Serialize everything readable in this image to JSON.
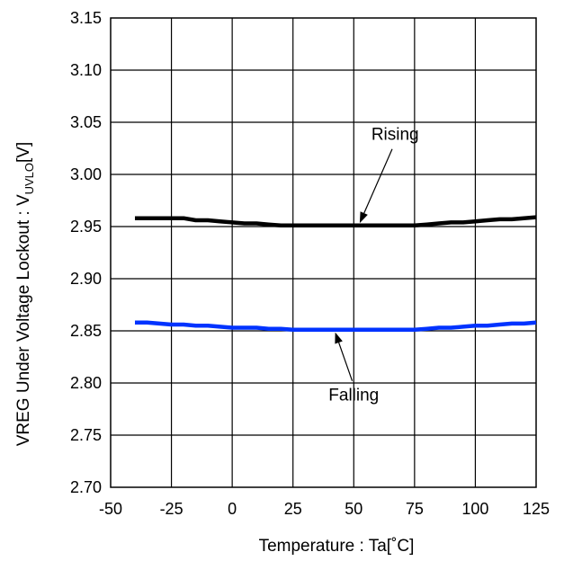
{
  "chart_data": {
    "type": "line",
    "title": "",
    "xlabel": "Temperature : Ta[˚C]",
    "ylabel": {
      "before": "VREG Under Voltage Lockout : V",
      "sub": "UVLO",
      "after": "[V]"
    },
    "xlim": [
      -50,
      125
    ],
    "ylim": [
      2.7,
      3.15
    ],
    "x_ticks": [
      "-50",
      "-25",
      "0",
      "25",
      "50",
      "75",
      "100",
      "125"
    ],
    "y_ticks": [
      "2.70",
      "2.75",
      "2.80",
      "2.85",
      "2.90",
      "2.95",
      "3.00",
      "3.05",
      "3.10",
      "3.15"
    ],
    "grid": true,
    "series": [
      {
        "name": "Rising",
        "color": "#000000",
        "x": [
          -40,
          -35,
          -30,
          -25,
          -20,
          -15,
          -10,
          -5,
          0,
          5,
          10,
          15,
          20,
          25,
          30,
          35,
          40,
          45,
          50,
          55,
          60,
          65,
          70,
          75,
          80,
          85,
          90,
          95,
          100,
          105,
          110,
          115,
          120,
          125
        ],
        "y": [
          2.958,
          2.958,
          2.958,
          2.958,
          2.958,
          2.956,
          2.956,
          2.955,
          2.954,
          2.953,
          2.953,
          2.952,
          2.951,
          2.951,
          2.951,
          2.951,
          2.951,
          2.951,
          2.951,
          2.951,
          2.951,
          2.951,
          2.951,
          2.951,
          2.952,
          2.953,
          2.954,
          2.954,
          2.955,
          2.956,
          2.957,
          2.957,
          2.958,
          2.959
        ]
      },
      {
        "name": "Falling",
        "color": "#0033ff",
        "x": [
          -40,
          -35,
          -30,
          -25,
          -20,
          -15,
          -10,
          -5,
          0,
          5,
          10,
          15,
          20,
          25,
          30,
          35,
          40,
          45,
          50,
          55,
          60,
          65,
          70,
          75,
          80,
          85,
          90,
          95,
          100,
          105,
          110,
          115,
          120,
          125
        ],
        "y": [
          2.858,
          2.858,
          2.857,
          2.856,
          2.856,
          2.855,
          2.855,
          2.854,
          2.853,
          2.853,
          2.853,
          2.852,
          2.852,
          2.851,
          2.851,
          2.851,
          2.851,
          2.851,
          2.851,
          2.851,
          2.851,
          2.851,
          2.851,
          2.851,
          2.852,
          2.853,
          2.853,
          2.854,
          2.855,
          2.855,
          2.856,
          2.857,
          2.857,
          2.858
        ]
      }
    ],
    "annotations": [
      {
        "text": "Rising",
        "points_to": {
          "x": 52,
          "y": 2.951
        },
        "label_at": {
          "x": 67,
          "y": 3.033
        }
      },
      {
        "text": "Falling",
        "points_to": {
          "x": 42,
          "y": 2.851
        },
        "label_at": {
          "x": 50,
          "y": 2.783
        }
      }
    ]
  }
}
